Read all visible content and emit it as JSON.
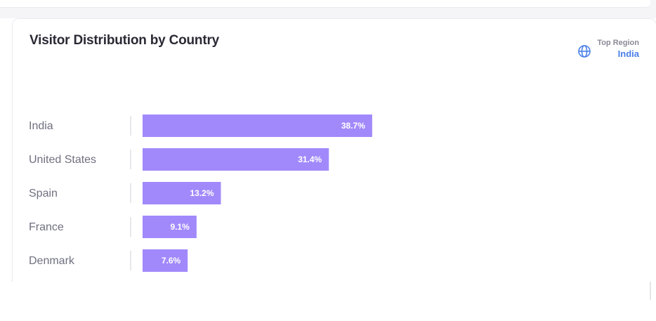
{
  "card": {
    "title": "Visitor Distribution by Country",
    "top_region_label": "Top Region",
    "top_region_value": "India"
  },
  "colors": {
    "bar": "#a189fb",
    "accent": "#4a7fe8",
    "divider": "#d8d8de"
  },
  "icons": {
    "region": "globe-icon"
  },
  "chart_data": {
    "type": "bar",
    "orientation": "horizontal",
    "title": "Visitor Distribution by Country",
    "categories": [
      "India",
      "United States",
      "Spain",
      "France",
      "Denmark"
    ],
    "values": [
      38.7,
      31.4,
      13.2,
      9.1,
      7.6
    ],
    "value_labels": [
      "38.7%",
      "31.4%",
      "13.2%",
      "9.1%",
      "7.6%"
    ],
    "unit": "%",
    "xlim": [
      0,
      85
    ],
    "grid": false,
    "legend": "none"
  }
}
